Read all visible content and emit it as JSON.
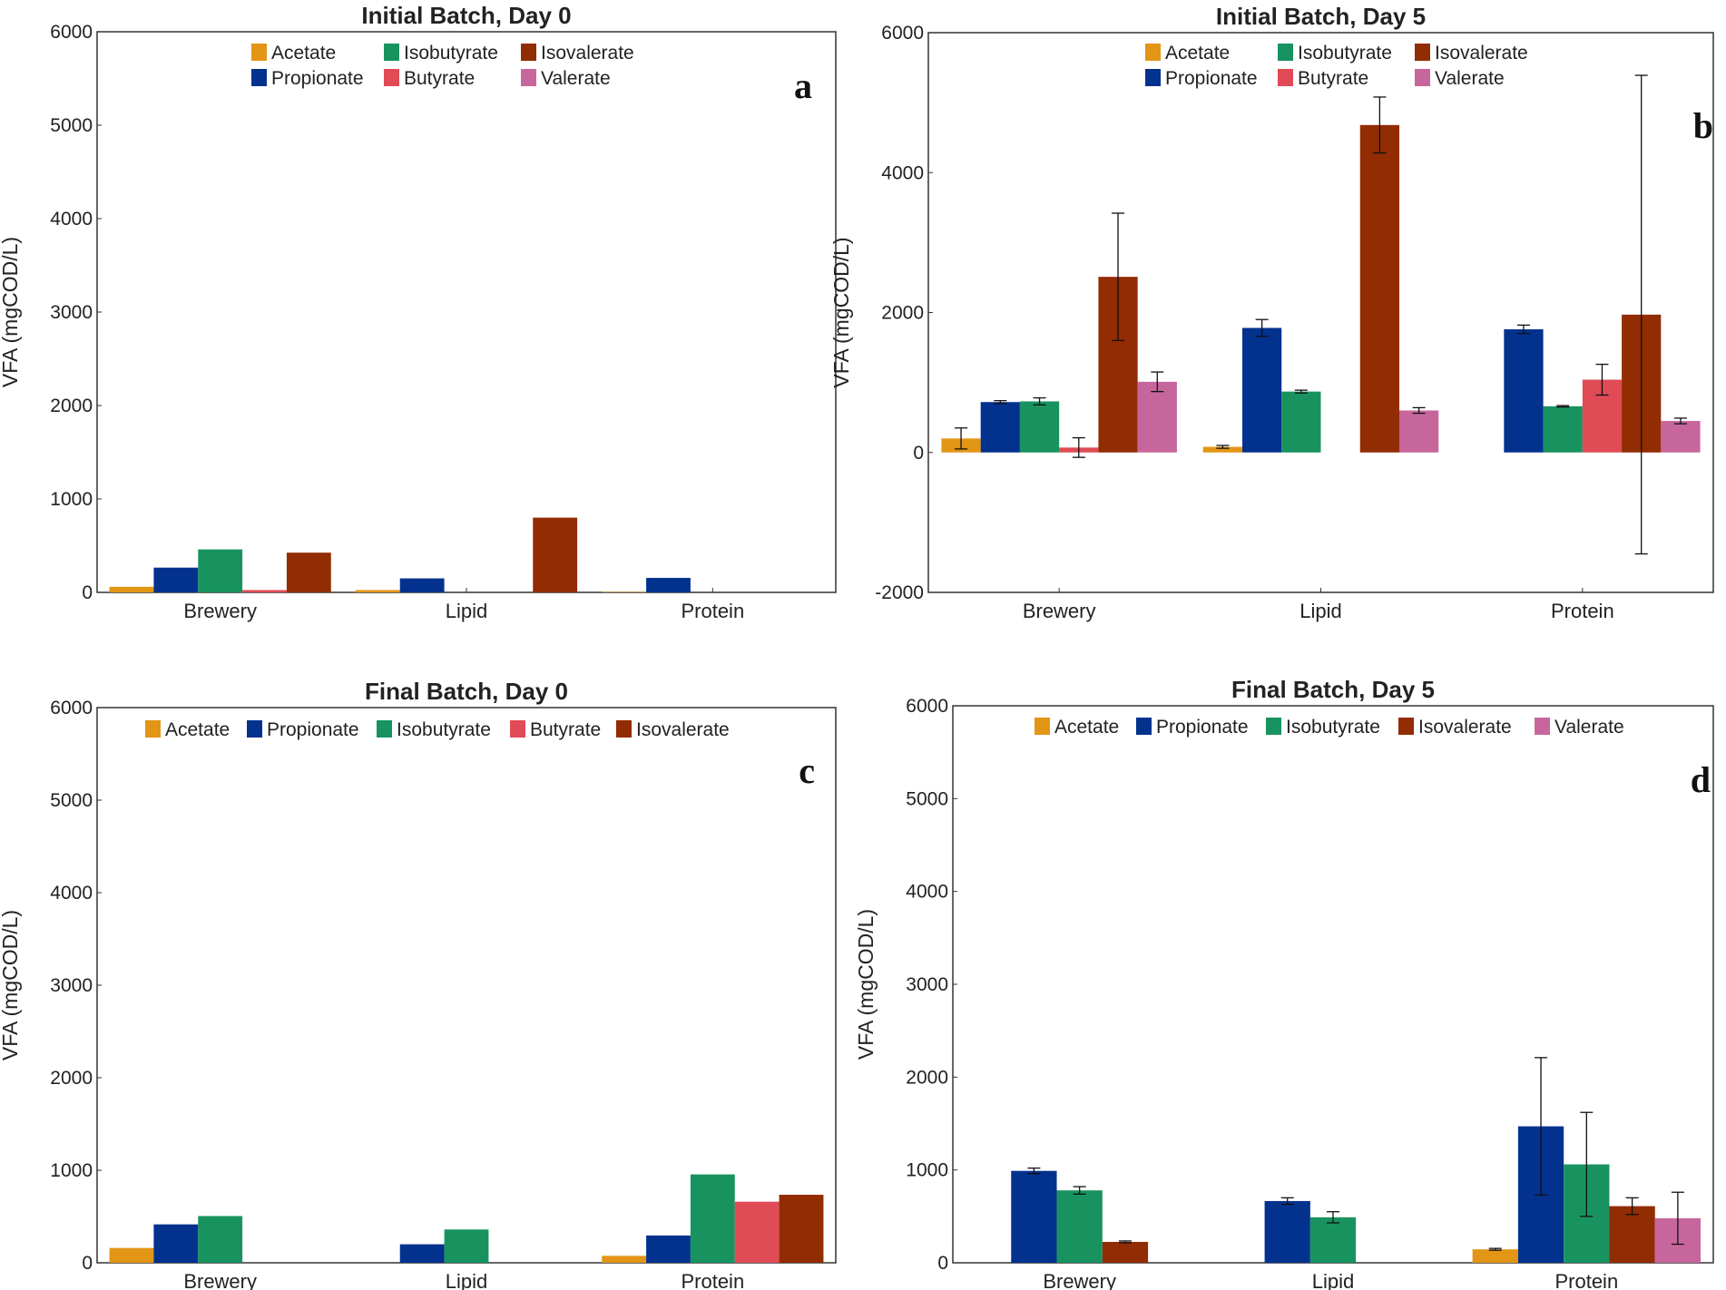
{
  "colors": {
    "Acetate": "#E39516",
    "Propionate": "#03318E",
    "Isobutyrate": "#18935F",
    "Butyrate": "#E04B56",
    "Isovalerate": "#922C03",
    "Valerate": "#C7669D"
  },
  "chart_data": [
    {
      "id": "a",
      "type": "bar",
      "title": "Initial Batch, Day 0",
      "panel_letter": "a",
      "ylabel": "VFA (mgCOD/L)",
      "ylim": [
        0,
        6000
      ],
      "yticks": [
        0,
        1000,
        2000,
        3000,
        4000,
        5000,
        6000
      ],
      "categories": [
        "Brewery",
        "Lipid",
        "Protein"
      ],
      "legend": [
        "Acetate",
        "Isobutyrate",
        "Isovalerate",
        "Propionate",
        "Butyrate",
        "Valerate"
      ],
      "series": [
        {
          "name": "Acetate",
          "values": [
            60,
            25,
            5
          ]
        },
        {
          "name": "Propionate",
          "values": [
            265,
            150,
            155
          ]
        },
        {
          "name": "Isobutyrate",
          "values": [
            460,
            0,
            0
          ]
        },
        {
          "name": "Butyrate",
          "values": [
            25,
            0,
            0
          ]
        },
        {
          "name": "Isovalerate",
          "values": [
            425,
            800,
            0
          ]
        }
      ]
    },
    {
      "id": "b",
      "type": "bar",
      "title": "Initial Batch, Day 5",
      "panel_letter": "b",
      "ylabel": "VFA (mgCOD/L)",
      "ylim": [
        -2000,
        6000
      ],
      "yticks": [
        -2000,
        0,
        2000,
        4000,
        6000
      ],
      "categories": [
        "Brewery",
        "Lipid",
        "Protein"
      ],
      "legend": [
        "Acetate",
        "Isobutyrate",
        "Isovalerate",
        "Propionate",
        "Butyrate",
        "Valerate"
      ],
      "series": [
        {
          "name": "Acetate",
          "values": [
            200,
            80,
            null
          ],
          "errors": [
            150,
            20,
            null
          ]
        },
        {
          "name": "Propionate",
          "values": [
            720,
            1780,
            1760
          ],
          "errors": [
            20,
            120,
            60
          ]
        },
        {
          "name": "Isobutyrate",
          "values": [
            730,
            870,
            660
          ],
          "errors": [
            50,
            20,
            10
          ]
        },
        {
          "name": "Butyrate",
          "values": [
            70,
            null,
            1040
          ],
          "errors": [
            140,
            null,
            220
          ]
        },
        {
          "name": "Isovalerate",
          "values": [
            2510,
            4680,
            1970
          ],
          "errors": [
            910,
            400,
            3420
          ]
        },
        {
          "name": "Valerate",
          "values": [
            1010,
            600,
            450
          ],
          "errors": [
            140,
            40,
            40
          ]
        }
      ]
    },
    {
      "id": "c",
      "type": "bar",
      "title": "Final Batch, Day 0",
      "panel_letter": "c",
      "ylabel": "VFA (mgCOD/L)",
      "ylim": [
        0,
        6000
      ],
      "yticks": [
        0,
        1000,
        2000,
        3000,
        4000,
        5000,
        6000
      ],
      "categories": [
        "Brewery",
        "Lipid",
        "Protein"
      ],
      "legend": [
        "Acetate",
        "Propionate",
        "Isobutyrate",
        "Butyrate",
        "Isovalerate"
      ],
      "series": [
        {
          "name": "Acetate",
          "values": [
            160,
            0,
            75
          ]
        },
        {
          "name": "Propionate",
          "values": [
            415,
            200,
            295
          ]
        },
        {
          "name": "Isobutyrate",
          "values": [
            505,
            360,
            955
          ]
        },
        {
          "name": "Butyrate",
          "values": [
            0,
            0,
            660
          ]
        },
        {
          "name": "Isovalerate",
          "values": [
            0,
            0,
            735
          ]
        }
      ]
    },
    {
      "id": "d",
      "type": "bar",
      "title": "Final Batch, Day 5",
      "panel_letter": "d",
      "ylabel": "VFA (mgCOD/L)",
      "ylim": [
        0,
        6000
      ],
      "yticks": [
        0,
        1000,
        2000,
        3000,
        4000,
        5000,
        6000
      ],
      "categories": [
        "Brewery",
        "Lipid",
        "Protein"
      ],
      "legend": [
        "Acetate",
        "Propionate",
        "Isobutyrate",
        "Isovalerate",
        "Valerate"
      ],
      "series": [
        {
          "name": "Acetate",
          "values": [
            null,
            null,
            145
          ],
          "errors": [
            null,
            null,
            10
          ]
        },
        {
          "name": "Propionate",
          "values": [
            990,
            665,
            1470
          ],
          "errors": [
            30,
            35,
            740
          ]
        },
        {
          "name": "Isobutyrate",
          "values": [
            780,
            490,
            1060
          ],
          "errors": [
            40,
            60,
            560
          ]
        },
        {
          "name": "Isovalerate",
          "values": [
            225,
            null,
            610
          ],
          "errors": [
            10,
            null,
            90
          ]
        },
        {
          "name": "Valerate",
          "values": [
            null,
            null,
            480
          ],
          "errors": [
            null,
            null,
            280
          ]
        }
      ]
    }
  ]
}
